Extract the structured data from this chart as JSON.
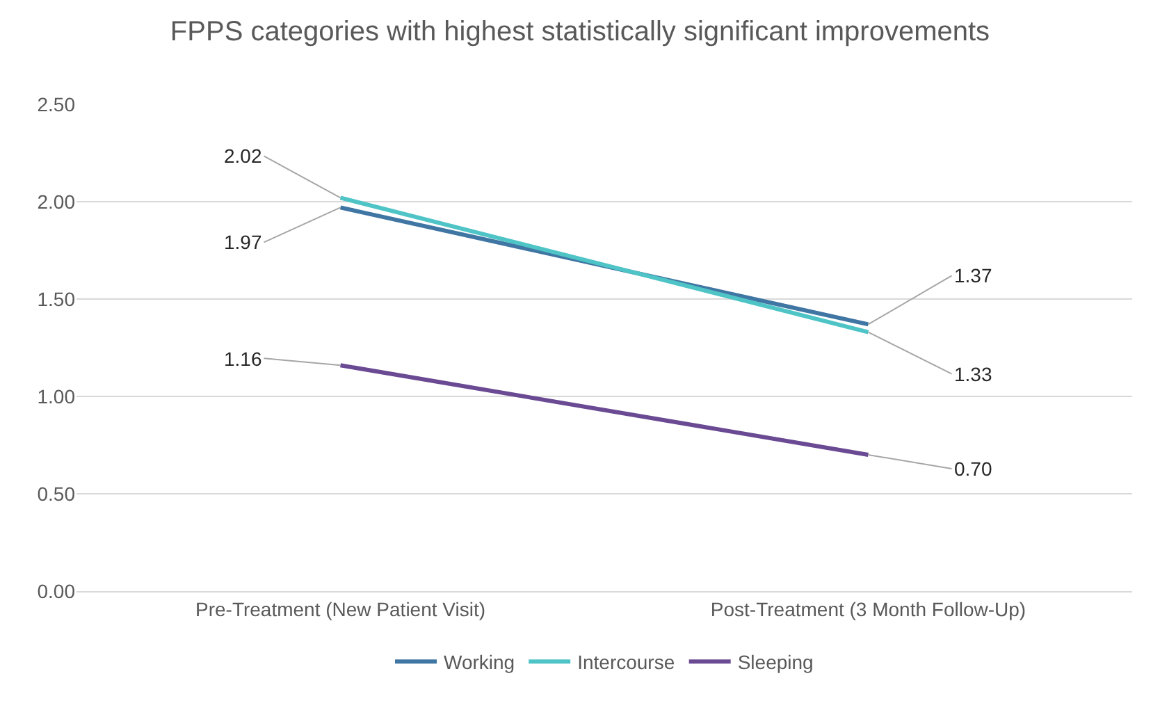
{
  "chart_data": {
    "type": "line",
    "title": "FPPS categories with highest statistically significant improvements",
    "categories": [
      "Pre-Treatment (New Patient Visit)",
      "Post-Treatment (3 Month Follow-Up)"
    ],
    "series": [
      {
        "name": "Working",
        "color": "#3f76a3",
        "values": [
          1.97,
          1.37
        ],
        "value_labels": [
          "1.97",
          "1.37"
        ]
      },
      {
        "name": "Intercourse",
        "color": "#4fc4c6",
        "values": [
          2.02,
          1.33
        ],
        "value_labels": [
          "2.02",
          "1.33"
        ]
      },
      {
        "name": "Sleeping",
        "color": "#6b4a94",
        "values": [
          1.16,
          0.7
        ],
        "value_labels": [
          "1.16",
          "0.70"
        ]
      }
    ],
    "ylim": [
      0,
      2.5
    ],
    "yticks": [
      {
        "value": 0,
        "label": "0.00"
      },
      {
        "value": 0.5,
        "label": "0.50"
      },
      {
        "value": 1,
        "label": "1.00"
      },
      {
        "value": 1.5,
        "label": "1.50"
      },
      {
        "value": 2,
        "label": "2.00"
      },
      {
        "value": 2.5,
        "label": "2.50"
      }
    ],
    "grid": "y",
    "legend": "bottom",
    "marker": "none",
    "line_style": "solid"
  }
}
